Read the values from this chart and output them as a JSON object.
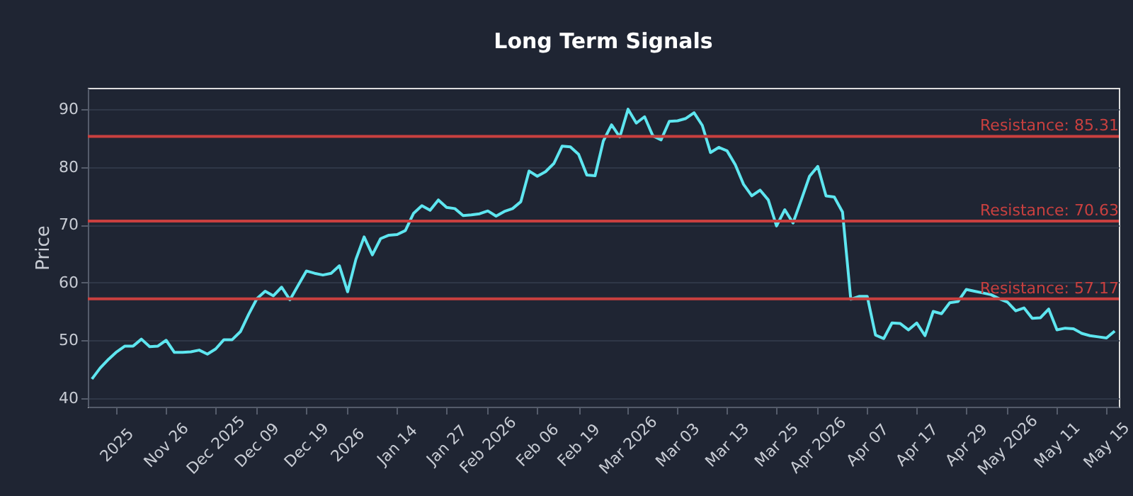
{
  "chart_data": {
    "type": "line",
    "title": "Long Term Signals",
    "ylabel": "Price",
    "categories": [
      null,
      null,
      null,
      "2025",
      null,
      null,
      null,
      null,
      null,
      "Nov 26",
      null,
      null,
      null,
      null,
      null,
      "Dec 2025",
      null,
      null,
      null,
      null,
      "Dec 09",
      null,
      null,
      null,
      null,
      null,
      "Dec 19",
      null,
      null,
      null,
      null,
      "2026",
      null,
      null,
      null,
      null,
      null,
      "Jan 14",
      null,
      null,
      null,
      null,
      null,
      "Jan 27",
      null,
      null,
      null,
      null,
      "Feb 2026",
      null,
      null,
      null,
      null,
      null,
      "Feb 06",
      null,
      null,
      null,
      null,
      "Feb 19",
      null,
      null,
      null,
      null,
      null,
      "Mar 2026",
      null,
      null,
      null,
      null,
      null,
      "Mar 03",
      null,
      null,
      null,
      null,
      null,
      "Mar 13",
      null,
      null,
      null,
      null,
      null,
      "Mar 25",
      null,
      null,
      null,
      null,
      "Apr 2026",
      null,
      null,
      null,
      null,
      null,
      "Apr 07",
      null,
      null,
      null,
      null,
      null,
      "Apr 17",
      null,
      null,
      null,
      null,
      null,
      "Apr 29",
      null,
      null,
      null,
      null,
      "May 2026",
      null,
      null,
      null,
      null,
      null,
      "May 11",
      null,
      null,
      null,
      null,
      null,
      "May 15",
      null
    ],
    "series": [
      {
        "color": "#5ee6f0",
        "values": [
          43.3,
          45.2,
          46.7,
          48.0,
          49.0,
          49.0,
          50.2,
          48.9,
          49.0,
          50.0,
          47.9,
          47.9,
          48.0,
          48.3,
          47.6,
          48.5,
          50.1,
          50.1,
          51.5,
          54.5,
          57.2,
          58.5,
          57.7,
          59.2,
          57.0,
          59.5,
          62.0,
          61.6,
          61.3,
          61.6,
          62.9,
          58.4,
          64.0,
          67.9,
          64.8,
          67.6,
          68.2,
          68.3,
          69.0,
          72.0,
          73.3,
          72.5,
          74.3,
          73.0,
          72.8,
          71.6,
          71.7,
          71.9,
          72.4,
          71.5,
          72.3,
          72.8,
          74.0,
          79.3,
          78.4,
          79.2,
          80.6,
          83.6,
          83.5,
          82.2,
          78.6,
          78.5,
          84.5,
          87.3,
          85.2,
          90.0,
          87.6,
          88.7,
          85.4,
          84.7,
          87.9,
          88.0,
          88.4,
          89.4,
          87.2,
          82.5,
          83.4,
          82.8,
          80.4,
          77.0,
          75.0,
          76.0,
          74.3,
          69.8,
          72.6,
          70.3,
          74.3,
          78.4,
          80.1,
          75.0,
          74.8,
          72.2,
          57.1,
          57.6,
          57.6,
          50.9,
          50.3,
          53.0,
          52.9,
          51.8,
          53.0,
          50.8,
          55.0,
          54.6,
          56.5,
          56.7,
          58.8,
          58.5,
          58.2,
          57.9,
          57.2,
          56.6,
          55.1,
          55.6,
          53.8,
          53.9,
          55.4,
          51.8,
          52.1,
          52.0,
          51.2,
          50.8,
          50.6,
          50.4,
          51.6
        ]
      }
    ],
    "ylim": [
      38.5,
      93.7
    ],
    "yticks": [
      40,
      50,
      60,
      70,
      80,
      90
    ],
    "grid": "y",
    "line_style": "solid",
    "marker": "none",
    "ref_lines": [
      {
        "axis": "y",
        "value": 85.31,
        "label": "Resistance: 85.31",
        "color": "#c9403f"
      },
      {
        "axis": "y",
        "value": 70.63,
        "label": "Resistance: 70.63",
        "color": "#c9403f"
      },
      {
        "axis": "y",
        "value": 57.17,
        "label": "Resistance: 57.17",
        "color": "#c9403f"
      }
    ]
  }
}
